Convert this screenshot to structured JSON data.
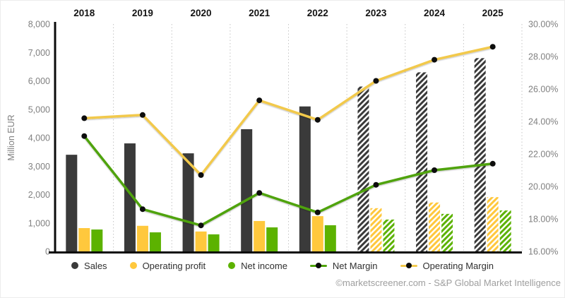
{
  "chart_data": {
    "type": "bar",
    "subtype": "combo-bars-and-lines",
    "categories": [
      "2018",
      "2019",
      "2020",
      "2021",
      "2022",
      "2023",
      "2024",
      "2025"
    ],
    "estimate_indices": [
      5,
      6,
      7
    ],
    "bar_series": [
      {
        "name": "Sales",
        "color_key": "sales",
        "values": [
          3400,
          3800,
          3450,
          4300,
          5100,
          5800,
          6300,
          6800
        ]
      },
      {
        "name": "Operating profit",
        "color_key": "operating_profit",
        "values": [
          820,
          900,
          700,
          1070,
          1240,
          1520,
          1720,
          1910
        ]
      },
      {
        "name": "Net income",
        "color_key": "net_income",
        "values": [
          770,
          670,
          600,
          845,
          920,
          1120,
          1320,
          1440
        ]
      }
    ],
    "line_series": [
      {
        "name": "Net Margin",
        "color_key": "net_margin",
        "values": [
          23.1,
          18.6,
          17.6,
          19.6,
          18.4,
          20.1,
          21.0,
          21.4
        ]
      },
      {
        "name": "Operating Margin",
        "color_key": "operating_margin",
        "values": [
          24.2,
          24.4,
          20.7,
          25.3,
          24.1,
          26.5,
          27.8,
          28.6
        ]
      }
    ],
    "left_axis": {
      "label": "Million EUR",
      "min": 0,
      "max": 8000,
      "ticks": [
        {
          "v": 8000,
          "label": "8,000"
        },
        {
          "v": 7000,
          "label": "7,000"
        },
        {
          "v": 6000,
          "label": "6,000"
        },
        {
          "v": 5000,
          "label": "5,000"
        },
        {
          "v": 4000,
          "label": "4,000"
        },
        {
          "v": 3000,
          "label": "3,000"
        },
        {
          "v": 2000,
          "label": "2,000"
        },
        {
          "v": 1000,
          "label": "1,000"
        },
        {
          "v": 0,
          "label": "0"
        }
      ]
    },
    "right_axis": {
      "min": 16,
      "max": 30,
      "ticks": [
        {
          "v": 30,
          "label": "30.00%"
        },
        {
          "v": 28,
          "label": "28.00%"
        },
        {
          "v": 26,
          "label": "26.00%"
        },
        {
          "v": 24,
          "label": "24.00%"
        },
        {
          "v": 22,
          "label": "22.00%"
        },
        {
          "v": 20,
          "label": "20.00%"
        },
        {
          "v": 18,
          "label": "18.00%"
        },
        {
          "v": 16,
          "label": "16.00%"
        }
      ]
    },
    "grid": {
      "horizontal": false,
      "vertical_separators": "dotted"
    },
    "legend_position": "bottom"
  },
  "legend": {
    "items": [
      {
        "label": "Sales",
        "marker": "dot"
      },
      {
        "label": "Operating profit",
        "marker": "dot"
      },
      {
        "label": "Net income",
        "marker": "dot"
      },
      {
        "label": "Net Margin",
        "marker": "line-dot"
      },
      {
        "label": "Operating Margin",
        "marker": "line-dot"
      }
    ]
  },
  "footer": {
    "credit": "©marketscreener.com - S&P Global Market Intelligence"
  },
  "colors": {
    "sales": "#3A3A3A",
    "operating_profit": "#FFC83D",
    "net_income": "#5CB200",
    "net_margin": "#4FA30B",
    "operating_margin": "#F2C94C",
    "marker": "#0D0D0D",
    "axis_text": "#808080",
    "year_label": "#141414",
    "separator": "#C4C4C4",
    "axis_line": "#0A0A0A",
    "legend_text": "#303030",
    "footer_text": "#9E9E9E"
  }
}
